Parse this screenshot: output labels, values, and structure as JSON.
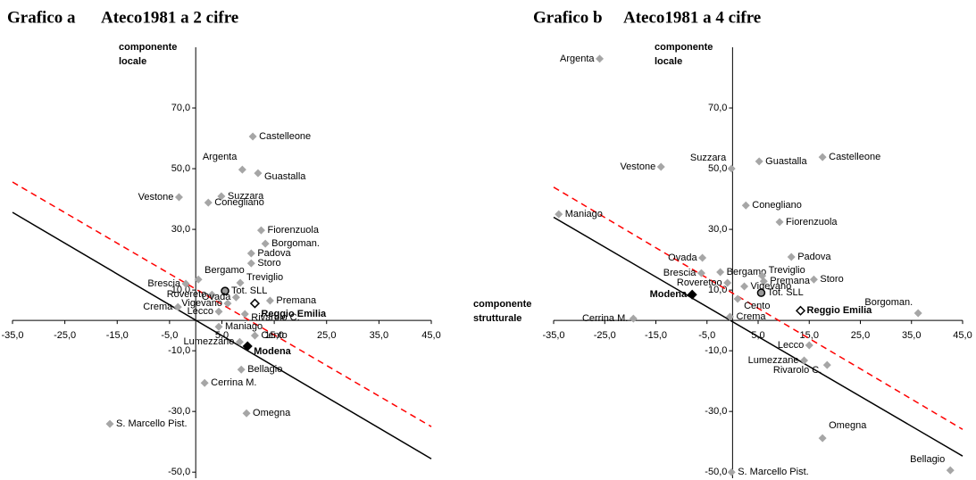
{
  "chart_data": [
    {
      "type": "scatter",
      "title": "Grafico a",
      "subtitle": "Ateco1981 a 2 cifre",
      "y_label": "componente locale",
      "x_label": "componente strutturale",
      "xlim": [
        -35,
        45
      ],
      "ylim": [
        -52,
        90
      ],
      "xticks": [
        {
          "value": -35,
          "label": "-35,0"
        },
        {
          "value": -25,
          "label": "-25,0"
        },
        {
          "value": -15,
          "label": "-15,0"
        },
        {
          "value": -5,
          "label": "-5,0"
        },
        {
          "value": 5,
          "label": "5,0"
        },
        {
          "value": 15,
          "label": "15,0"
        },
        {
          "value": 25,
          "label": "25,0"
        },
        {
          "value": 35,
          "label": "35,0"
        },
        {
          "value": 45,
          "label": "45,0"
        }
      ],
      "yticks": [
        {
          "value": 70,
          "label": "70,0"
        },
        {
          "value": 50,
          "label": "50,0"
        },
        {
          "value": 30,
          "label": "30,0"
        },
        {
          "value": 10,
          "label": "10,0"
        },
        {
          "value": -10,
          "label": "-10,0"
        },
        {
          "value": -30,
          "label": "-30,0"
        },
        {
          "value": -50,
          "label": "-50,0"
        }
      ],
      "color": "#a6a6a6",
      "labels": [
        "Castelleone",
        "Argenta",
        "Guastalla",
        "Vestone",
        "Suzzara",
        "Conegliano",
        "Fiorenzuola",
        "Borgoman.",
        "Padova",
        "Storo",
        "Treviglio",
        "Bergamo",
        "Brescia",
        "Tot. SLL",
        "Rovereto",
        "Ovada",
        "Vigevano",
        "Premana",
        "Reggio Emilia",
        "Crema",
        "Lecco",
        "Rivarolo C.",
        "Maniago",
        "Cento",
        "Lumezzane",
        "Modena",
        "Bellagio",
        "Cerrina M.",
        "Omegna",
        "S. Marcello Pist."
      ],
      "x": [
        10.9,
        8.9,
        11.9,
        -3.2,
        4.9,
        2.4,
        12.5,
        13.3,
        10.6,
        10.6,
        8.5,
        0.5,
        -1.9,
        5.6,
        3.1,
        7.7,
        6.1,
        14.2,
        11.3,
        -3.4,
        4.4,
        9.4,
        4.4,
        11.3,
        8.4,
        9.9,
        8.7,
        1.7,
        9.7,
        -16.4
      ],
      "y": [
        60.6,
        49.7,
        48.5,
        40.6,
        40.9,
        38.8,
        29.7,
        25.3,
        22.1,
        18.8,
        12.4,
        13.5,
        12.1,
        9.7,
        8.5,
        7.6,
        5.6,
        6.5,
        5.6,
        4.4,
        2.9,
        2.1,
        -2.1,
        -5.0,
        -7.1,
        -8.5,
        -16.2,
        -20.6,
        -30.6,
        -34.1
      ],
      "markers": [
        "diamond",
        "diamond",
        "diamond",
        "diamond",
        "diamond",
        "diamond",
        "diamond",
        "diamond",
        "diamond",
        "diamond",
        "diamond",
        "diamond",
        "diamond",
        "circle",
        "diamond",
        "diamond",
        "diamond",
        "diamond",
        "outline",
        "diamond",
        "diamond",
        "diamond",
        "diamond",
        "diamond",
        "diamond",
        "black",
        "diamond",
        "diamond",
        "diamond",
        "diamond"
      ],
      "lines": [
        {
          "x": [
            -35,
            45
          ],
          "y": [
            35.6,
            -45.6
          ],
          "color": "#000000",
          "dash": false
        },
        {
          "x": [
            -35,
            45
          ],
          "y": [
            45.6,
            -35
          ],
          "color": "#ff0000",
          "dash": true
        }
      ]
    },
    {
      "type": "scatter",
      "title": "Grafico b",
      "subtitle": "Ateco1981 a 4 cifre",
      "y_label": "componente locale",
      "xlim": [
        -35,
        45
      ],
      "ylim": [
        -52,
        90
      ],
      "xticks": [
        {
          "value": -35,
          "label": "-35,0"
        },
        {
          "value": -25,
          "label": "-25,0"
        },
        {
          "value": -15,
          "label": "-15,0"
        },
        {
          "value": -5,
          "label": "-5,0"
        },
        {
          "value": 5,
          "label": "5,0"
        },
        {
          "value": 15,
          "label": "15,0"
        },
        {
          "value": 25,
          "label": "25,0"
        },
        {
          "value": 35,
          "label": "35,0"
        },
        {
          "value": 45,
          "label": "45,0"
        }
      ],
      "yticks": [
        {
          "value": 70,
          "label": "70,0"
        },
        {
          "value": 50,
          "label": "50,0"
        },
        {
          "value": 30,
          "label": "30,0"
        },
        {
          "value": 10,
          "label": "10,0"
        },
        {
          "value": -10,
          "label": "-10,0"
        },
        {
          "value": -30,
          "label": "-30,0"
        },
        {
          "value": -50,
          "label": "-50,0"
        }
      ],
      "color": "#a6a6a6",
      "labels": [
        "Argenta",
        "Castelleone",
        "Guastalla",
        "Suzzara",
        "Vestone",
        "Conegliano",
        "Fiorenzuola",
        "Maniago",
        "Padova",
        "Ovada",
        "Bergamo",
        "Brescia",
        "Treviglio",
        "Premana",
        "Storo",
        "Roveretoo",
        "Vigevano",
        "Tot. SLL",
        "Modena",
        "Cento",
        "Reggio Emilia",
        "Borgoman.",
        "Cerrina M.",
        "Crema",
        "Lecco",
        "Lumezzane",
        "Rivarolo C.",
        "Omegna",
        "S. Marcello Pist.",
        "Bellagio"
      ],
      "x": [
        -26.0,
        17.6,
        5.2,
        -0.2,
        -14.0,
        2.6,
        9.2,
        -34.0,
        11.5,
        -5.9,
        -2.4,
        -6.1,
        5.8,
        6.1,
        15.9,
        -1.0,
        2.3,
        5.6,
        -7.9,
        1.0,
        13.3,
        36.3,
        -19.4,
        -0.5,
        15.0,
        14.0,
        18.5,
        17.6,
        -0.2,
        42.6
      ],
      "y": [
        86.2,
        53.8,
        52.4,
        50.0,
        50.6,
        37.9,
        32.4,
        35.0,
        20.9,
        20.6,
        15.9,
        15.6,
        14.7,
        12.9,
        13.5,
        12.4,
        11.2,
        9.1,
        8.5,
        7.1,
        3.2,
        2.4,
        0.6,
        1.2,
        -8.2,
        -13.2,
        -14.7,
        -38.8,
        -50.0,
        -49.4
      ],
      "markers": [
        "diamond",
        "diamond",
        "diamond",
        "diamond",
        "diamond",
        "diamond",
        "diamond",
        "diamond",
        "diamond",
        "diamond",
        "diamond",
        "diamond",
        "diamond",
        "diamond",
        "diamond",
        "diamond",
        "diamond",
        "circle",
        "black",
        "diamond",
        "outline",
        "diamond",
        "diamond",
        "diamond",
        "diamond",
        "diamond",
        "diamond",
        "diamond",
        "diamond",
        "diamond"
      ],
      "lines": [
        {
          "x": [
            -35,
            45
          ],
          "y": [
            34.0,
            -44.7
          ],
          "color": "#000000",
          "dash": false
        },
        {
          "x": [
            -35,
            45
          ],
          "y": [
            43.9,
            -35.9
          ],
          "color": "#ff0000",
          "dash": true
        }
      ]
    }
  ]
}
